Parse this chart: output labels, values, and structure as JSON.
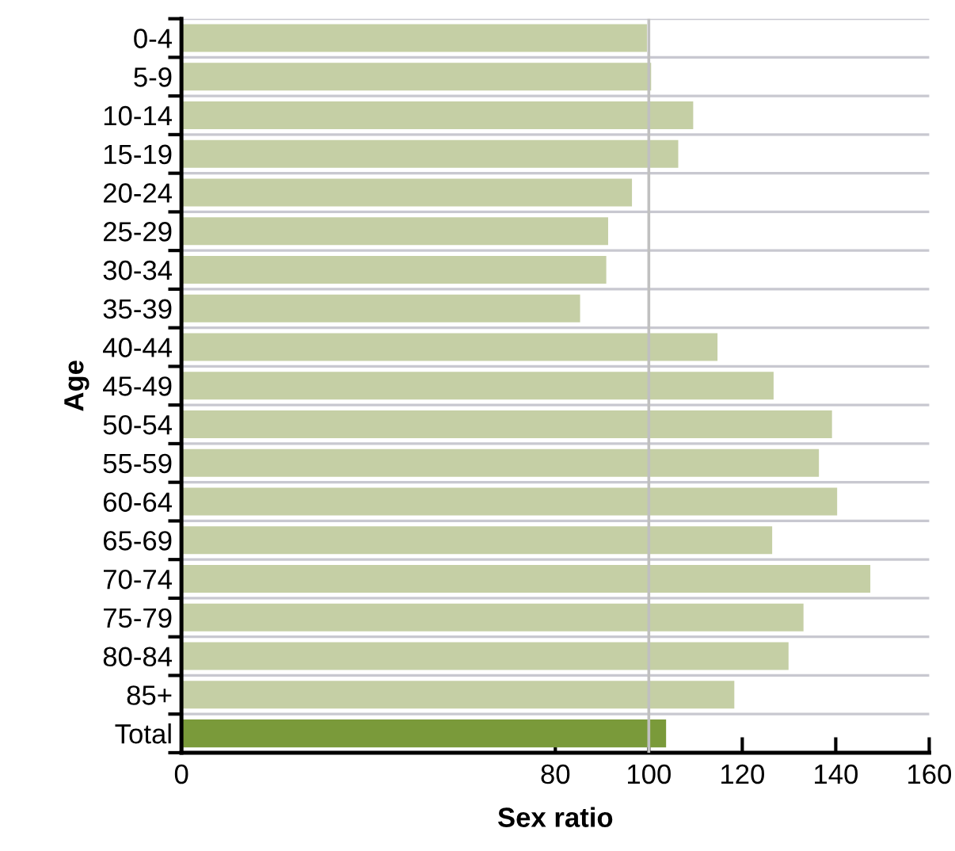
{
  "chart_data": {
    "type": "bar",
    "orientation": "horizontal",
    "xlabel": "Sex ratio",
    "ylabel": "Age",
    "categories": [
      "0-4",
      "5-9",
      "10-14",
      "15-19",
      "20-24",
      "25-29",
      "30-34",
      "35-39",
      "40-44",
      "45-49",
      "50-54",
      "55-59",
      "60-64",
      "65-69",
      "70-74",
      "75-79",
      "80-84",
      "85+",
      "Total"
    ],
    "values": [
      99.6,
      100.5,
      109.5,
      106.3,
      96.4,
      91.3,
      90.9,
      85.3,
      114.7,
      126.7,
      139.2,
      136.4,
      140.3,
      126.4,
      147.4,
      133.1,
      129.9,
      118.3,
      103.7
    ],
    "colors": [
      "#c5cfa5",
      "#c5cfa5",
      "#c5cfa5",
      "#c5cfa5",
      "#c5cfa5",
      "#c5cfa5",
      "#c5cfa5",
      "#c5cfa5",
      "#c5cfa5",
      "#c5cfa5",
      "#c5cfa5",
      "#c5cfa5",
      "#c5cfa5",
      "#c5cfa5",
      "#c5cfa5",
      "#c5cfa5",
      "#c5cfa5",
      "#c5cfa5",
      "#7a9a3a"
    ],
    "xlim": [
      0,
      160
    ],
    "xticks": [
      0,
      80,
      100,
      120,
      140,
      160
    ],
    "ref_lines": [
      {
        "axis": "x",
        "value": 100,
        "color": "#c0c0c0"
      }
    ],
    "grid": "y"
  }
}
